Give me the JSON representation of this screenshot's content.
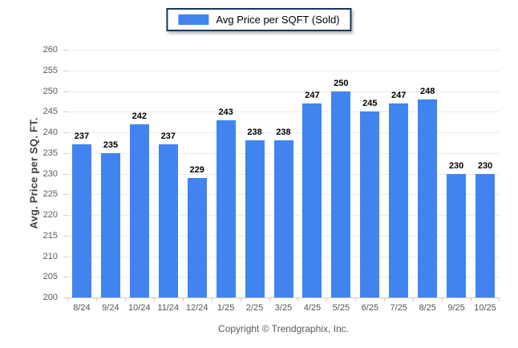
{
  "chart_data": {
    "type": "bar",
    "title": "",
    "legend": [
      {
        "label": "Avg Price per SQFT (Sold)",
        "color": "#4184f0"
      }
    ],
    "categories": [
      "8/24",
      "9/24",
      "10/24",
      "11/24",
      "12/24",
      "1/25",
      "2/25",
      "3/25",
      "4/25",
      "5/25",
      "6/25",
      "7/25",
      "8/25",
      "9/25",
      "10/25"
    ],
    "values": [
      237,
      235,
      242,
      237,
      229,
      243,
      238,
      238,
      247,
      250,
      245,
      247,
      248,
      230,
      230
    ],
    "xlabel": "",
    "ylabel": "Avg. Price per SQ. FT.",
    "ylim": [
      200,
      260
    ],
    "ytick_step": 5,
    "grid": "horizontal",
    "legend_position": "top-center",
    "bar_color": "#4184f0",
    "gridline_color": "#ebebeb",
    "axis_line_color": "#c9c9c9"
  },
  "footer": {
    "copyright": "Copyright © Trendgraphix, Inc."
  }
}
